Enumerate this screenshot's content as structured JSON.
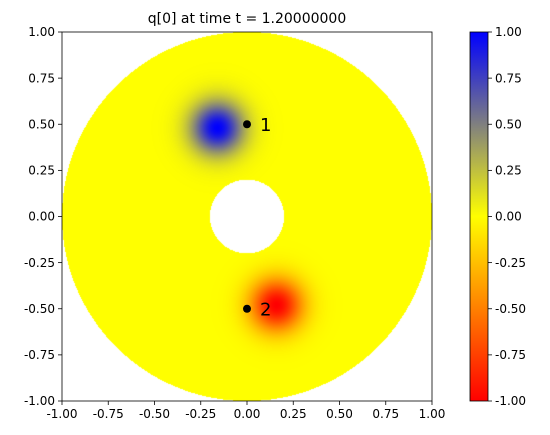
{
  "chart_data": {
    "type": "heatmap",
    "title": "q[0] at time t =     1.20000000",
    "xlim": [
      -1.0,
      1.0
    ],
    "ylim": [
      -1.0,
      1.0
    ],
    "x_ticks": [
      "-1.00",
      "-0.75",
      "-0.50",
      "-0.25",
      "0.00",
      "0.25",
      "0.50",
      "0.75",
      "1.00"
    ],
    "y_ticks": [
      "1.00",
      "0.75",
      "0.50",
      "0.25",
      "0.00",
      "-0.25",
      "-0.50",
      "-0.75",
      "-1.00"
    ],
    "domain": {
      "shape": "annulus",
      "center": [
        0,
        0
      ],
      "outer_radius": 1.0,
      "inner_radius": 0.2
    },
    "background_value": 0.0,
    "blobs": [
      {
        "center": [
          -0.16,
          0.48
        ],
        "amplitude": 1.0,
        "sigma": 0.1
      },
      {
        "center": [
          0.16,
          -0.48
        ],
        "amplitude": -1.0,
        "sigma": 0.1
      }
    ],
    "markers": [
      {
        "label": "1",
        "x": 0.0,
        "y": 0.5
      },
      {
        "label": "2",
        "x": 0.0,
        "y": -0.5
      }
    ],
    "colorbar": {
      "min": -1.0,
      "max": 1.0,
      "ticks": [
        "1.00",
        "0.75",
        "0.50",
        "0.25",
        "0.00",
        "-0.25",
        "-0.50",
        "-0.75",
        "-1.00"
      ],
      "colors": {
        "min": "#ff0000",
        "mid": "#ffff00",
        "max": "#0000ff"
      }
    },
    "grid": false
  }
}
